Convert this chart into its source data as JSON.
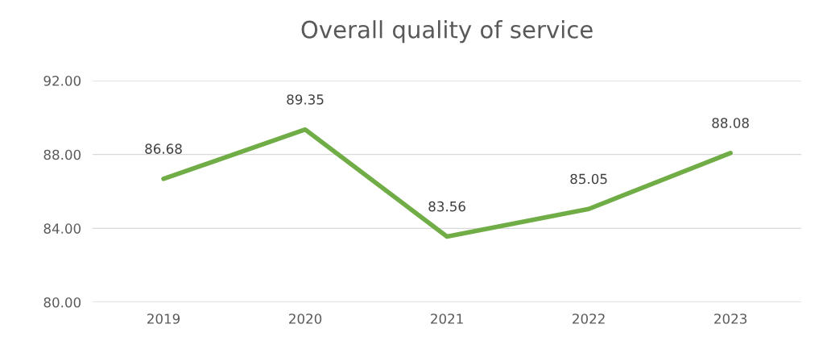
{
  "chart_data": {
    "type": "line",
    "title": "Overall quality of service",
    "categories": [
      "2019",
      "2020",
      "2021",
      "2022",
      "2023"
    ],
    "series": [
      {
        "color": "#70ad47",
        "values": [
          86.68,
          89.35,
          83.56,
          85.05,
          88.08
        ]
      }
    ],
    "ylim": [
      80,
      92
    ],
    "yticks": [
      {
        "value": 80,
        "label": "80.00"
      },
      {
        "value": 84,
        "label": "84.00"
      },
      {
        "value": 88,
        "label": "88.00"
      },
      {
        "value": 92,
        "label": "92.00"
      }
    ],
    "grid": "y",
    "data_labels": true,
    "marker": "none",
    "line_style": "solid"
  }
}
